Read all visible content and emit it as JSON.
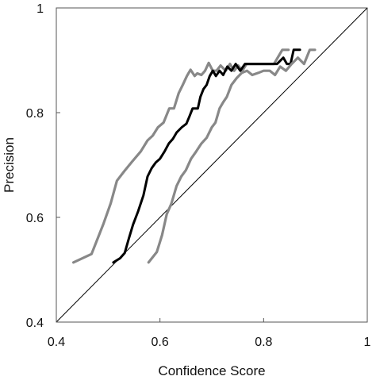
{
  "chart_data": {
    "type": "line",
    "xlabel": "Confidence Score",
    "ylabel": "Precision",
    "xlim": [
      0.4,
      1.0
    ],
    "ylim": [
      0.4,
      1.0
    ],
    "x_ticks": [
      "0.4",
      "0.6",
      "0.8",
      "1"
    ],
    "x_tick_values": [
      0.4,
      0.6,
      0.8,
      1.0
    ],
    "y_ticks": [
      "0.4",
      "0.6",
      "0.8",
      "1"
    ],
    "y_tick_values": [
      0.4,
      0.6,
      0.8,
      1.0
    ],
    "grid": false,
    "legend": "none",
    "series": [
      {
        "color": "#888888",
        "style": "bound-upper",
        "x": [
          0.433,
          0.468,
          0.491,
          0.505,
          0.517,
          0.531,
          0.545,
          0.563,
          0.576,
          0.586,
          0.596,
          0.607,
          0.618,
          0.627,
          0.636,
          0.644,
          0.652,
          0.659,
          0.667,
          0.672,
          0.68,
          0.687,
          0.694,
          0.702,
          0.709,
          0.717,
          0.727,
          0.735,
          0.743,
          0.751,
          0.759,
          0.767,
          0.778,
          0.794,
          0.809,
          0.82,
          0.836,
          0.848
        ],
        "y": [
          0.514,
          0.53,
          0.588,
          0.627,
          0.67,
          0.688,
          0.705,
          0.726,
          0.747,
          0.756,
          0.772,
          0.781,
          0.808,
          0.808,
          0.837,
          0.853,
          0.87,
          0.882,
          0.87,
          0.875,
          0.872,
          0.88,
          0.895,
          0.88,
          0.88,
          0.89,
          0.88,
          0.893,
          0.88,
          0.89,
          0.88,
          0.893,
          0.893,
          0.893,
          0.893,
          0.893,
          0.92,
          0.92
        ]
      },
      {
        "color": "#000000",
        "style": "center",
        "x": [
          0.51,
          0.523,
          0.532,
          0.54,
          0.548,
          0.558,
          0.568,
          0.576,
          0.584,
          0.592,
          0.6,
          0.609,
          0.617,
          0.625,
          0.632,
          0.642,
          0.651,
          0.657,
          0.663,
          0.668,
          0.673,
          0.678,
          0.684,
          0.69,
          0.696,
          0.702,
          0.708,
          0.715,
          0.722,
          0.73,
          0.738,
          0.746,
          0.755,
          0.764,
          0.772,
          0.78,
          0.79,
          0.8,
          0.813,
          0.826,
          0.838,
          0.845,
          0.852,
          0.858,
          0.864,
          0.87
        ],
        "y": [
          0.514,
          0.522,
          0.532,
          0.56,
          0.586,
          0.612,
          0.642,
          0.678,
          0.694,
          0.705,
          0.712,
          0.726,
          0.741,
          0.75,
          0.762,
          0.772,
          0.779,
          0.793,
          0.808,
          0.808,
          0.808,
          0.83,
          0.845,
          0.853,
          0.87,
          0.88,
          0.87,
          0.88,
          0.872,
          0.888,
          0.88,
          0.893,
          0.88,
          0.893,
          0.893,
          0.893,
          0.893,
          0.893,
          0.893,
          0.893,
          0.905,
          0.893,
          0.893,
          0.92,
          0.92,
          0.92
        ]
      },
      {
        "color": "#888888",
        "style": "bound-lower",
        "x": [
          0.578,
          0.594,
          0.604,
          0.613,
          0.622,
          0.632,
          0.641,
          0.65,
          0.66,
          0.67,
          0.68,
          0.69,
          0.7,
          0.707,
          0.715,
          0.722,
          0.729,
          0.738,
          0.748,
          0.758,
          0.768,
          0.778,
          0.79,
          0.8,
          0.812,
          0.822,
          0.832,
          0.843,
          0.854,
          0.866,
          0.878,
          0.889,
          0.899
        ],
        "y": [
          0.514,
          0.534,
          0.566,
          0.606,
          0.626,
          0.66,
          0.678,
          0.69,
          0.712,
          0.726,
          0.741,
          0.752,
          0.772,
          0.781,
          0.808,
          0.82,
          0.83,
          0.853,
          0.866,
          0.876,
          0.88,
          0.872,
          0.876,
          0.88,
          0.88,
          0.872,
          0.888,
          0.88,
          0.893,
          0.905,
          0.893,
          0.92,
          0.92
        ]
      }
    ],
    "reference_line": {
      "x": [
        0.4,
        1.0
      ],
      "y": [
        0.4,
        1.0
      ],
      "color": "#000000"
    }
  }
}
